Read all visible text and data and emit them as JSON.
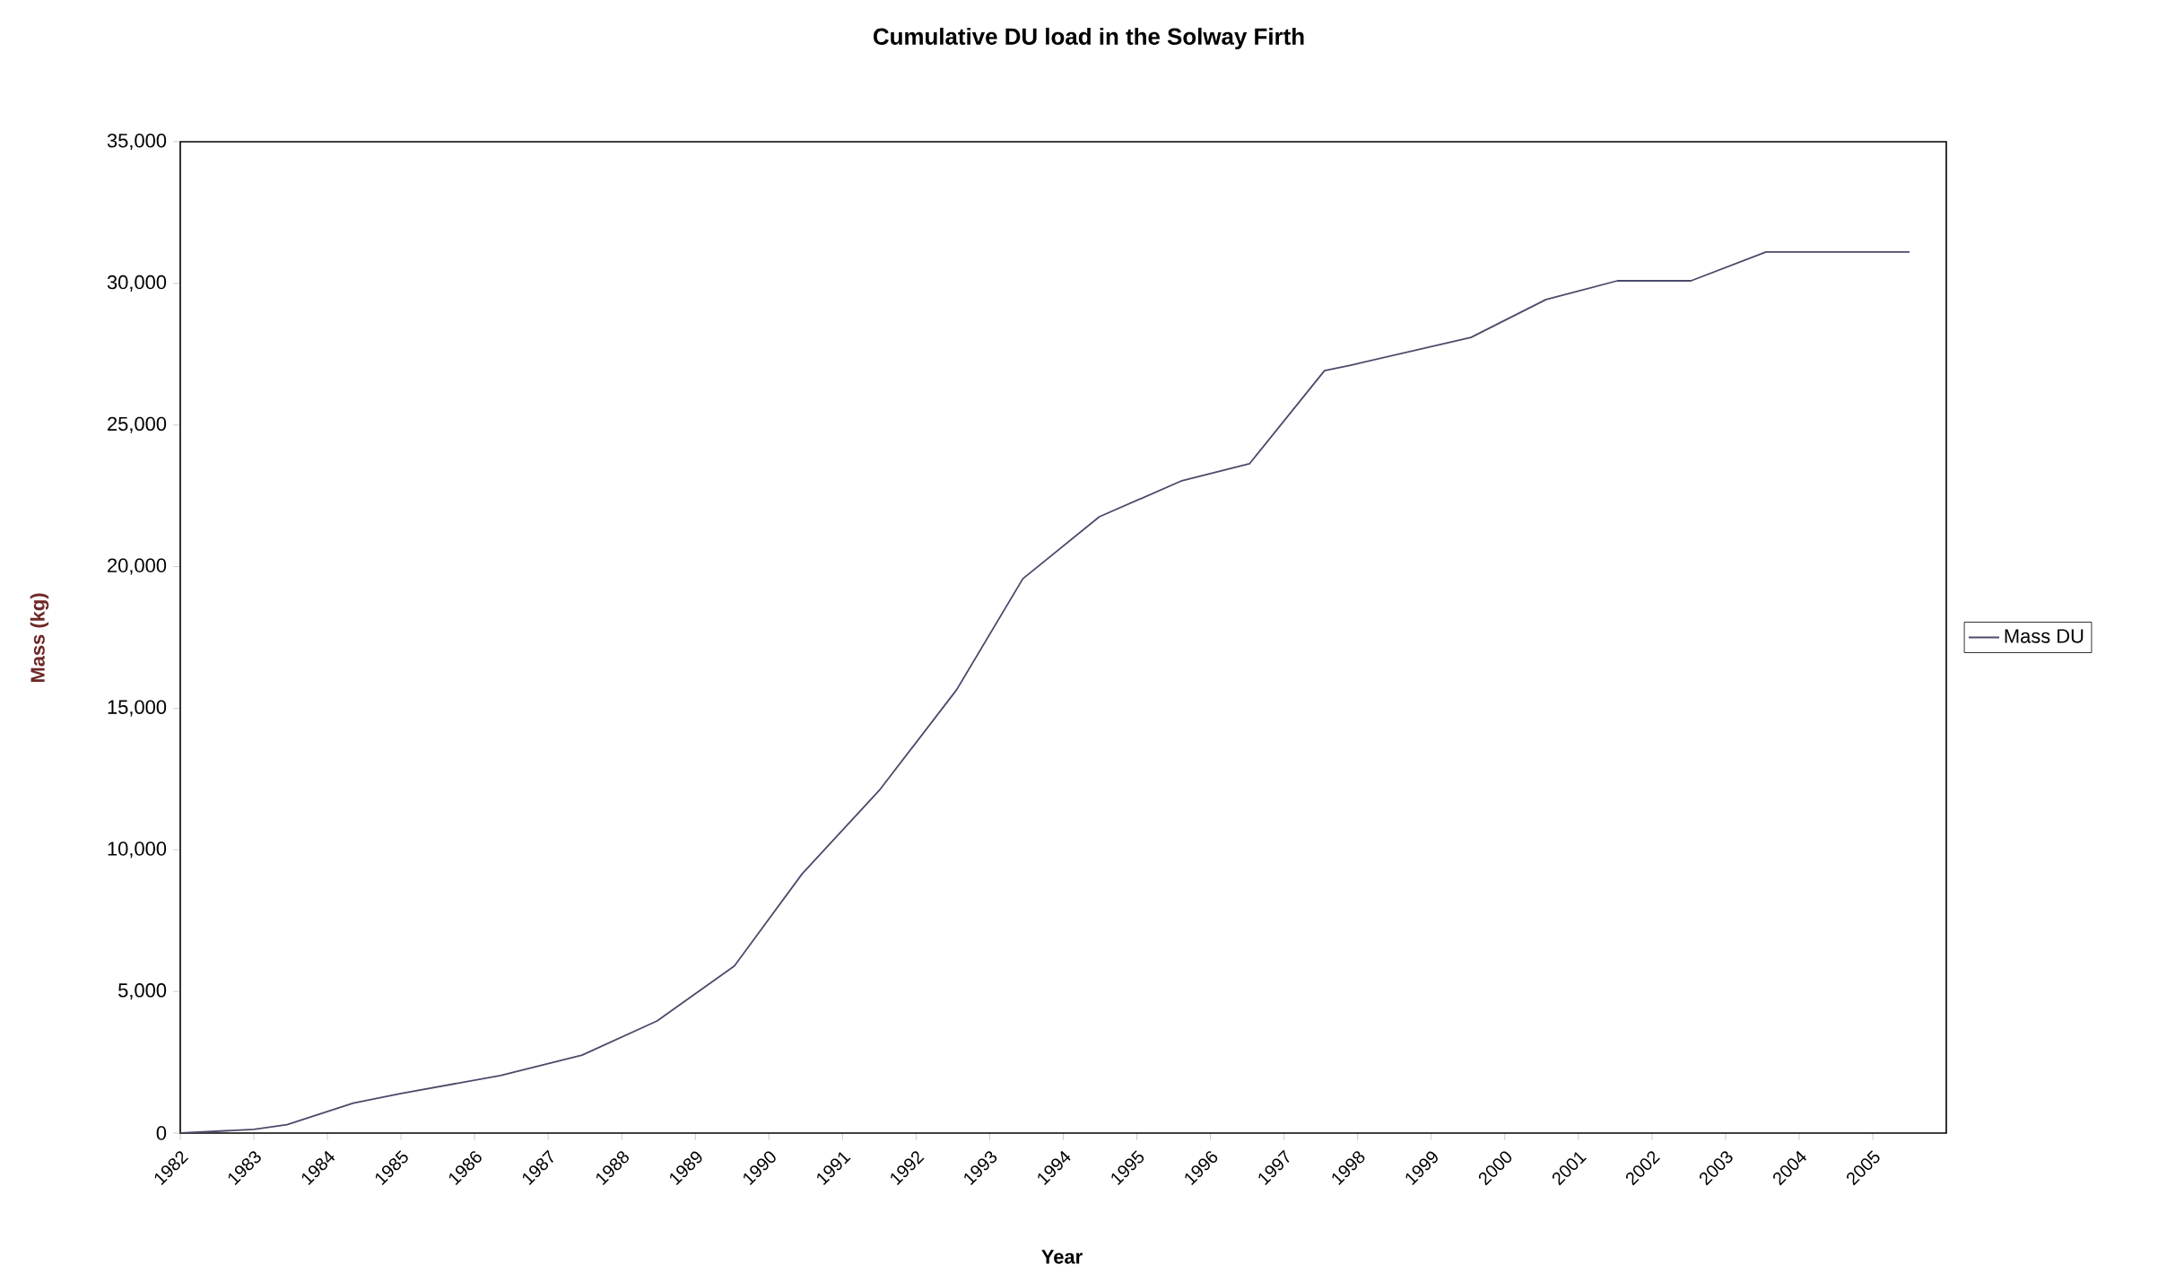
{
  "chart_data": {
    "type": "line",
    "title": "Cumulative DU load in the Solway Firth",
    "xlabel": "Year",
    "ylabel": "Mass (kg)",
    "xlim": [
      1982,
      2006
    ],
    "xticks": [
      1982,
      1983,
      1984,
      1985,
      1986,
      1987,
      1988,
      1989,
      1990,
      1991,
      1992,
      1993,
      1994,
      1995,
      1996,
      1997,
      1998,
      1999,
      2000,
      2001,
      2002,
      2003,
      2004,
      2005
    ],
    "ylim": [
      0,
      35000
    ],
    "yticks": [
      {
        "value": 0,
        "label": "0"
      },
      {
        "value": 5000,
        "label": "5,000"
      },
      {
        "value": 10000,
        "label": "10,000"
      },
      {
        "value": 15000,
        "label": "15,000"
      },
      {
        "value": 20000,
        "label": "20,000"
      },
      {
        "value": 25000,
        "label": "25,000"
      },
      {
        "value": 30000,
        "label": "30,000"
      },
      {
        "value": 35000,
        "label": "35,000"
      }
    ],
    "legend": "right",
    "series": [
      {
        "name": "Mass DU",
        "color": "#4a4a6a",
        "x": [
          1982.0,
          1983.0,
          1983.45,
          1984.35,
          1985.0,
          1986.35,
          1987.46,
          1988.48,
          1989.53,
          1990.45,
          1991.5,
          1992.55,
          1993.45,
          1994.49,
          1995.6,
          1996.53,
          1997.55,
          1997.92,
          1999.54,
          2000.56,
          2001.53,
          2002.53,
          2003.55,
          2005.5
        ],
        "values": [
          0,
          130,
          300,
          1060,
          1400,
          2030,
          2750,
          3960,
          5900,
          9150,
          12100,
          15650,
          19570,
          21760,
          23020,
          23630,
          26920,
          27120,
          28090,
          29430,
          30090,
          30090,
          31110,
          31110
        ]
      }
    ]
  }
}
